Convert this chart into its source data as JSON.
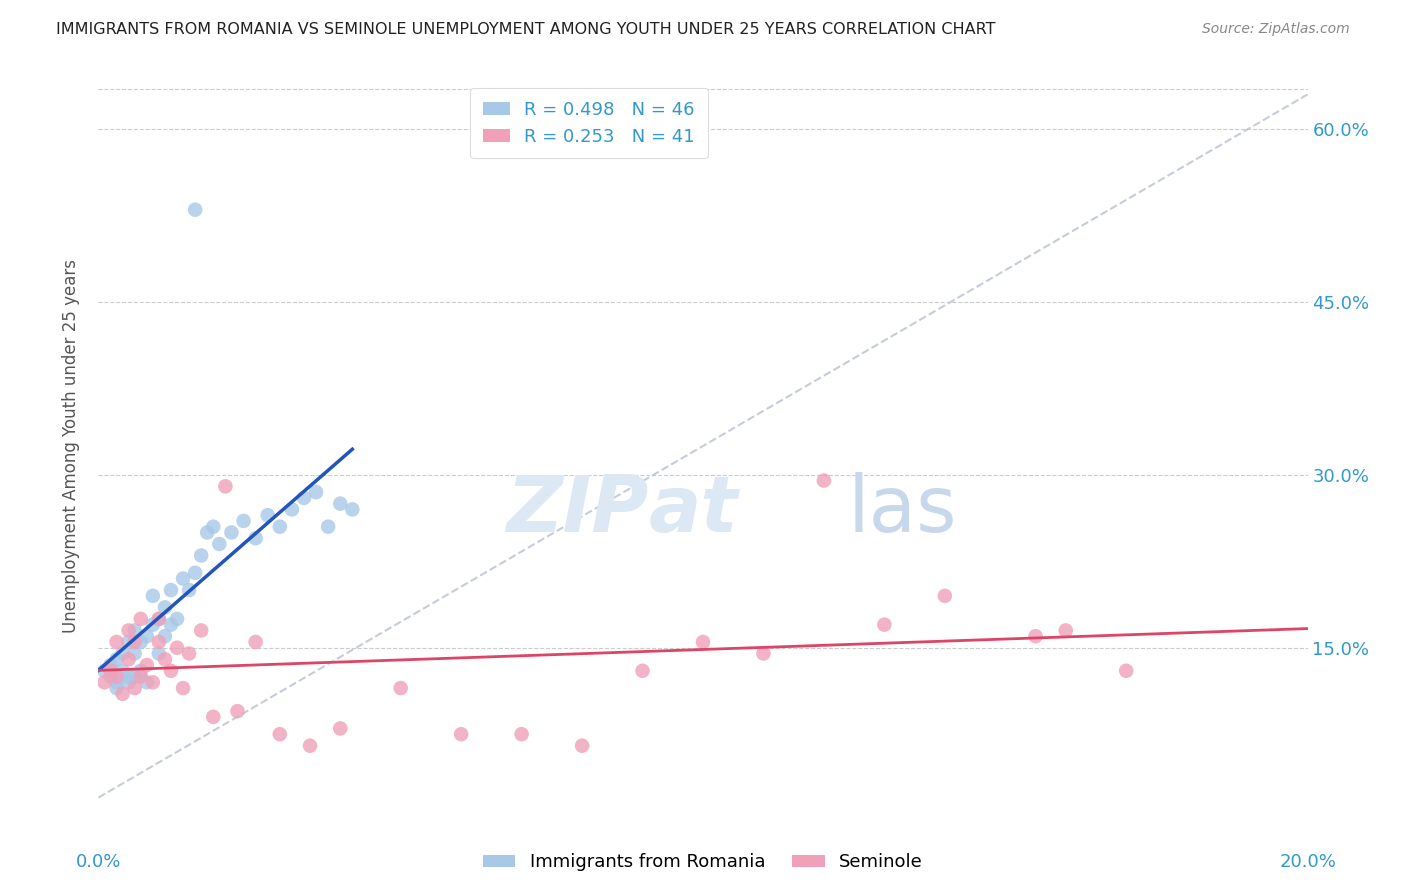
{
  "title": "IMMIGRANTS FROM ROMANIA VS SEMINOLE UNEMPLOYMENT AMONG YOUTH UNDER 25 YEARS CORRELATION CHART",
  "source": "Source: ZipAtlas.com",
  "ylabel": "Unemployment Among Youth under 25 years",
  "y_ticks": [
    "15.0%",
    "30.0%",
    "45.0%",
    "60.0%"
  ],
  "y_tick_values": [
    0.15,
    0.3,
    0.45,
    0.6
  ],
  "x_range": [
    0.0,
    0.2
  ],
  "y_range": [
    0.0,
    0.65
  ],
  "legend_label1": "Immigrants from Romania",
  "legend_label2": "Seminole",
  "r1": 0.498,
  "n1": 46,
  "r2": 0.253,
  "n2": 41,
  "color_romania": "#a8c8e8",
  "color_seminole": "#f0a0b8",
  "line_color_romania": "#2255bb",
  "line_color_seminole": "#dd4466",
  "diag_line_color": "#c0c8d4",
  "title_color": "#222222",
  "source_color": "#888888",
  "axis_label_color": "#3399cc",
  "romania_x": [
    0.001,
    0.002,
    0.002,
    0.003,
    0.003,
    0.003,
    0.004,
    0.004,
    0.005,
    0.005,
    0.005,
    0.006,
    0.006,
    0.006,
    0.007,
    0.007,
    0.008,
    0.008,
    0.009,
    0.009,
    0.01,
    0.01,
    0.011,
    0.011,
    0.012,
    0.012,
    0.013,
    0.014,
    0.015,
    0.016,
    0.017,
    0.018,
    0.019,
    0.02,
    0.022,
    0.024,
    0.026,
    0.028,
    0.03,
    0.032,
    0.034,
    0.036,
    0.038,
    0.04,
    0.042,
    0.016
  ],
  "romania_y": [
    0.13,
    0.125,
    0.135,
    0.115,
    0.12,
    0.14,
    0.13,
    0.145,
    0.12,
    0.125,
    0.155,
    0.125,
    0.145,
    0.165,
    0.13,
    0.155,
    0.12,
    0.16,
    0.17,
    0.195,
    0.145,
    0.175,
    0.16,
    0.185,
    0.17,
    0.2,
    0.175,
    0.21,
    0.2,
    0.215,
    0.23,
    0.25,
    0.255,
    0.24,
    0.25,
    0.26,
    0.245,
    0.265,
    0.255,
    0.27,
    0.28,
    0.285,
    0.255,
    0.275,
    0.27,
    0.53
  ],
  "seminole_x": [
    0.001,
    0.002,
    0.003,
    0.003,
    0.004,
    0.005,
    0.005,
    0.006,
    0.006,
    0.007,
    0.007,
    0.008,
    0.009,
    0.01,
    0.01,
    0.011,
    0.012,
    0.013,
    0.014,
    0.015,
    0.017,
    0.019,
    0.021,
    0.023,
    0.026,
    0.03,
    0.035,
    0.04,
    0.05,
    0.06,
    0.07,
    0.08,
    0.09,
    0.1,
    0.11,
    0.12,
    0.13,
    0.14,
    0.155,
    0.16,
    0.17
  ],
  "seminole_y": [
    0.12,
    0.13,
    0.125,
    0.155,
    0.11,
    0.14,
    0.165,
    0.115,
    0.155,
    0.125,
    0.175,
    0.135,
    0.12,
    0.155,
    0.175,
    0.14,
    0.13,
    0.15,
    0.115,
    0.145,
    0.165,
    0.09,
    0.29,
    0.095,
    0.155,
    0.075,
    0.065,
    0.08,
    0.115,
    0.075,
    0.075,
    0.065,
    0.13,
    0.155,
    0.145,
    0.295,
    0.17,
    0.195,
    0.16,
    0.165,
    0.13
  ]
}
